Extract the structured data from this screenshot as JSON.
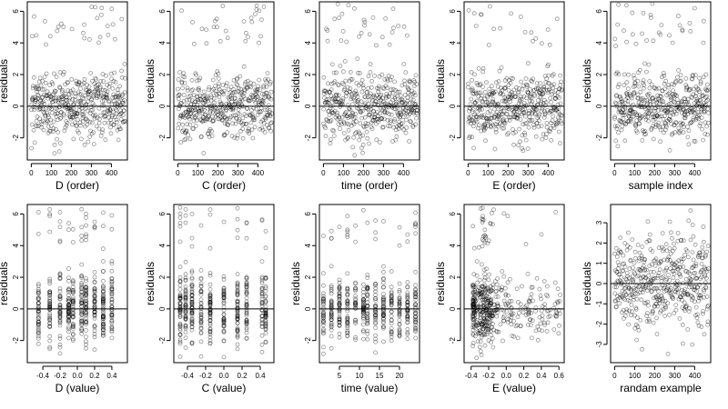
{
  "figure": {
    "background": "#ffffff",
    "point_color": "#000000"
  },
  "chart_data": [
    {
      "id": "p1",
      "type": "scatter",
      "xlabel": "D (order)",
      "ylabel": "residuals",
      "xlim": [
        -20,
        480
      ],
      "ylim": [
        -3.4,
        6.6
      ],
      "xticks": [
        0,
        100,
        200,
        300,
        400
      ],
      "xtick_labels": [
        "0",
        "100",
        "200",
        "300",
        "400"
      ],
      "yticks": [
        -2,
        0,
        2,
        4,
        6
      ],
      "ytick_labels": [
        "-2",
        "0",
        "2",
        "4",
        "6"
      ],
      "hline": 0,
      "x_mode": "index",
      "n": 470,
      "points": []
    },
    {
      "id": "p2",
      "type": "scatter",
      "xlabel": "C (order)",
      "ylabel": "residuals",
      "xlim": [
        -20,
        480
      ],
      "ylim": [
        -3.4,
        6.6
      ],
      "xticks": [
        0,
        100,
        200,
        300,
        400
      ],
      "xtick_labels": [
        "0",
        "100",
        "200",
        "300",
        "400"
      ],
      "yticks": [
        -2,
        0,
        2,
        4,
        6
      ],
      "ytick_labels": [
        "-2",
        "0",
        "2",
        "4",
        "6"
      ],
      "hline": 0,
      "x_mode": "index",
      "n": 470,
      "points": []
    },
    {
      "id": "p3",
      "type": "scatter",
      "xlabel": "time (order)",
      "ylabel": "residuals",
      "xlim": [
        -20,
        480
      ],
      "ylim": [
        -3.4,
        6.6
      ],
      "xticks": [
        0,
        100,
        200,
        300,
        400
      ],
      "xtick_labels": [
        "0",
        "100",
        "200",
        "300",
        "400"
      ],
      "yticks": [
        -2,
        0,
        2,
        4,
        6
      ],
      "ytick_labels": [
        "-2",
        "0",
        "2",
        "4",
        "6"
      ],
      "hline": 0,
      "x_mode": "index",
      "n": 470,
      "points": []
    },
    {
      "id": "p4",
      "type": "scatter",
      "xlabel": "E (order)",
      "ylabel": "residuals",
      "xlim": [
        -20,
        480
      ],
      "ylim": [
        -3.4,
        6.6
      ],
      "xticks": [
        0,
        100,
        200,
        300,
        400
      ],
      "xtick_labels": [
        "0",
        "100",
        "200",
        "300",
        "400"
      ],
      "yticks": [
        -2,
        0,
        2,
        4,
        6
      ],
      "ytick_labels": [
        "-2",
        "0",
        "2",
        "4",
        "6"
      ],
      "hline": 0,
      "x_mode": "index",
      "n": 470,
      "points": []
    },
    {
      "id": "p5",
      "type": "scatter",
      "xlabel": "sample index",
      "ylabel": "residuals",
      "xlim": [
        -20,
        480
      ],
      "ylim": [
        -3.4,
        6.6
      ],
      "xticks": [
        0,
        100,
        200,
        300,
        400
      ],
      "xtick_labels": [
        "0",
        "100",
        "200",
        "300",
        "400"
      ],
      "yticks": [
        -2,
        0,
        2,
        4,
        6
      ],
      "ytick_labels": [
        "-2",
        "0",
        "2",
        "4",
        "6"
      ],
      "hline": 0,
      "x_mode": "index",
      "n": 470,
      "points": []
    },
    {
      "id": "p6",
      "type": "scatter",
      "xlabel": "D (value)",
      "ylabel": "residuals",
      "xlim": [
        -0.58,
        0.58
      ],
      "ylim": [
        -3.4,
        6.6
      ],
      "xticks": [
        -0.4,
        -0.2,
        0.0,
        0.2,
        0.4
      ],
      "xtick_labels": [
        "-0.4",
        "-0.2",
        "0.0",
        "0.2",
        "0.4"
      ],
      "yticks": [
        -2,
        0,
        2,
        4,
        6
      ],
      "ytick_labels": [
        "-2",
        "0",
        "2",
        "4",
        "6"
      ],
      "hline": 0,
      "x_mode": "discrete",
      "x_levels": [
        -0.45,
        -0.32,
        -0.2,
        -0.1,
        -0.05,
        0.05,
        0.1,
        0.2,
        0.3,
        0.4
      ],
      "n": 470,
      "points": []
    },
    {
      "id": "p7",
      "type": "scatter",
      "xlabel": "C (value)",
      "ylabel": "residuals",
      "xlim": [
        -0.55,
        0.55
      ],
      "ylim": [
        -3.4,
        6.6
      ],
      "xticks": [
        -0.4,
        -0.2,
        0.0,
        0.2,
        0.4
      ],
      "xtick_labels": [
        "-0.4",
        "-0.2",
        "0.0",
        "0.2",
        "0.4"
      ],
      "yticks": [
        -2,
        0,
        2,
        4,
        6
      ],
      "ytick_labels": [
        "-2",
        "0",
        "2",
        "4",
        "6"
      ],
      "hline": 0,
      "x_mode": "discrete",
      "x_levels": [
        -0.48,
        -0.42,
        -0.35,
        -0.25,
        -0.15,
        0.0,
        0.15,
        0.25,
        0.42,
        0.46
      ],
      "n": 470,
      "points": []
    },
    {
      "id": "p8",
      "type": "scatter",
      "xlabel": "time (value)",
      "ylabel": "residuals",
      "xlim": [
        0,
        25
      ],
      "ylim": [
        -3.4,
        6.6
      ],
      "xticks": [
        5,
        10,
        15,
        20
      ],
      "xtick_labels": [
        "5",
        "10",
        "15",
        "20"
      ],
      "yticks": [
        -2,
        0,
        2,
        4,
        6
      ],
      "ytick_labels": [
        "-2",
        "0",
        "2",
        "4",
        "6"
      ],
      "hline": 0,
      "x_mode": "discrete",
      "x_levels": [
        1,
        3,
        5,
        7,
        9,
        11,
        12,
        14,
        16,
        18,
        20,
        22,
        24
      ],
      "n": 470,
      "points": []
    },
    {
      "id": "p9",
      "type": "scatter",
      "xlabel": "E (value)",
      "ylabel": "residuals",
      "xlim": [
        -0.48,
        0.66
      ],
      "ylim": [
        -3.4,
        6.6
      ],
      "xticks": [
        -0.4,
        -0.2,
        0.0,
        0.2,
        0.4,
        0.6
      ],
      "xtick_labels": [
        "-0.4",
        "-0.2",
        "0.0",
        "0.2",
        "0.4",
        "0.6"
      ],
      "yticks": [
        -2,
        0,
        2,
        4,
        6
      ],
      "ytick_labels": [
        "-2",
        "0",
        "2",
        "4",
        "6"
      ],
      "hline": 0,
      "x_mode": "skewed",
      "n": 470,
      "points": []
    },
    {
      "id": "p10",
      "type": "scatter",
      "xlabel": "randam example",
      "ylabel": "residuals",
      "xlim": [
        -20,
        480
      ],
      "ylim": [
        -3.9,
        3.9
      ],
      "xticks": [
        0,
        100,
        200,
        300,
        400
      ],
      "xtick_labels": [
        "0",
        "100",
        "200",
        "300",
        "400"
      ],
      "yticks": [
        -3,
        -2,
        -1,
        0,
        1,
        2,
        3
      ],
      "ytick_labels": [
        "-3",
        "-2",
        "-1",
        "0",
        "1",
        "2",
        "3"
      ],
      "hline": 0,
      "x_mode": "index",
      "y_mode": "normal",
      "n": 470,
      "points": []
    }
  ]
}
